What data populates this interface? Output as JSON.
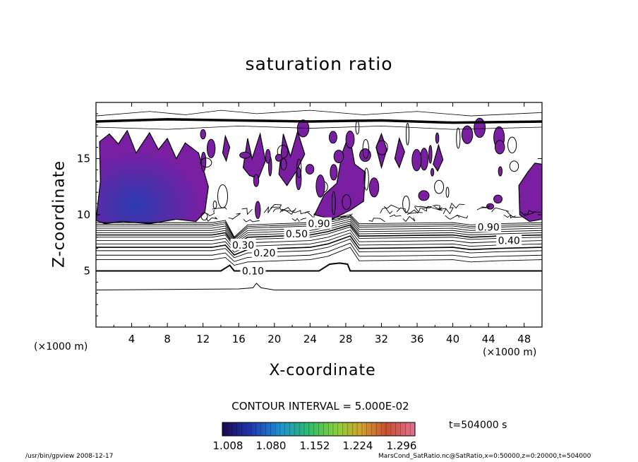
{
  "chart_data": {
    "type": "contour",
    "title": "saturation ratio",
    "xlabel": "X-coordinate",
    "ylabel": "Z-coordinate",
    "x_unit": "(×1000 m)",
    "x_range": [
      0,
      50
    ],
    "y_range": [
      0,
      20
    ],
    "x_ticks": [
      4,
      8,
      12,
      16,
      20,
      24,
      28,
      32,
      36,
      40,
      44,
      48
    ],
    "y_ticks": [
      5,
      10,
      15
    ],
    "contour_interval_label": "CONTOUR INTERVAL = 5.000E-02",
    "contour_labels": [
      {
        "text": "0.10",
        "x": 17.6,
        "y": 5.0
      },
      {
        "text": "0.20",
        "x": 18.9,
        "y": 6.6
      },
      {
        "text": "0.30",
        "x": 16.5,
        "y": 7.3
      },
      {
        "text": "0.40",
        "x": 46.3,
        "y": 7.7
      },
      {
        "text": "0.90",
        "x": 44.0,
        "y": 8.9
      },
      {
        "text": "0.50",
        "x": 22.5,
        "y": 8.3
      },
      {
        "text": "0.90",
        "x": 25.0,
        "y": 9.2
      }
    ],
    "filled_regions_note": "saturation ratio > 1.008 shaded purple-blue",
    "colorbar": {
      "ticks": [
        "1.008",
        "1.080",
        "1.152",
        "1.224",
        "1.296"
      ],
      "colors": [
        "#1a0a5a",
        "#7b1fa2"
      ]
    },
    "time_label": "t=504000 s"
  },
  "footer": {
    "left": "/usr/bin/gpview   2008-12-17",
    "right": "MarsCond_SatRatio.nc@SatRatio,x=0:50000,z=0:20000,t=504000"
  },
  "colors": {
    "fill_main": "#7b1fa2",
    "fill_dark": "#3f2a9e",
    "line": "#000000"
  }
}
